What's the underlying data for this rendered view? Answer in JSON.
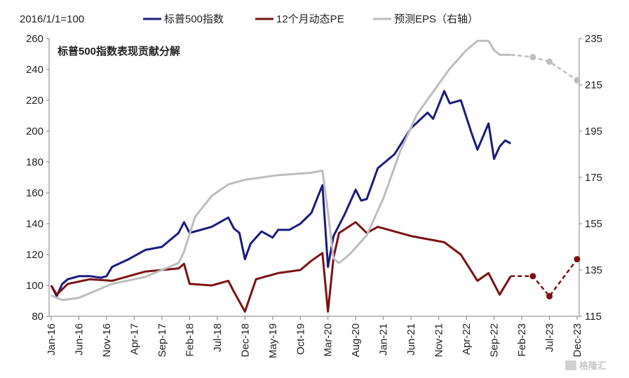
{
  "chart_data": {
    "type": "line",
    "title": "标普500指数表现贡献分解",
    "note": "2016/1/1=100",
    "x_ticks": [
      "Jan-16",
      "Jun-16",
      "Nov-16",
      "Apr-17",
      "Sep-17",
      "Feb-18",
      "Jul-18",
      "Dec-18",
      "May-19",
      "Oct-19",
      "Mar-20",
      "Aug-20",
      "Jan-21",
      "Jun-21",
      "Nov-21",
      "Apr-22",
      "Sep-22",
      "Feb-23",
      "Jul-23",
      "Dec-23"
    ],
    "y_left": {
      "ylim": [
        80,
        260
      ],
      "ticks": [
        80,
        100,
        120,
        140,
        160,
        180,
        200,
        220,
        240,
        260
      ]
    },
    "y_right": {
      "ylim": [
        115,
        235
      ],
      "ticks": [
        115,
        135,
        155,
        175,
        195,
        215,
        235
      ]
    },
    "grid": false,
    "legend_position": "top",
    "series": [
      {
        "name": "标普500指数",
        "axis": "left",
        "color": "#1b1b7e",
        "x": [
          "2016-01",
          "2016-02",
          "2016-03",
          "2016-04",
          "2016-06",
          "2016-08",
          "2016-10",
          "2016-11",
          "2016-12",
          "2017-03",
          "2017-06",
          "2017-09",
          "2017-12",
          "2018-01",
          "2018-02",
          "2018-03",
          "2018-06",
          "2018-09",
          "2018-10",
          "2018-11",
          "2018-12",
          "2019-01",
          "2019-03",
          "2019-05",
          "2019-06",
          "2019-08",
          "2019-10",
          "2019-12",
          "2020-02",
          "2020-03",
          "2020-04",
          "2020-06",
          "2020-08",
          "2020-09",
          "2020-10",
          "2020-12",
          "2021-03",
          "2021-06",
          "2021-09",
          "2021-10",
          "2021-12",
          "2022-01",
          "2022-03",
          "2022-05",
          "2022-06",
          "2022-08",
          "2022-09",
          "2022-10",
          "2022-11",
          "2022-12"
        ],
        "y": [
          100,
          93,
          101,
          104,
          106,
          106,
          105,
          106,
          112,
          117,
          123,
          125,
          134,
          141,
          134,
          135,
          138,
          144,
          137,
          134,
          117,
          127,
          135,
          131,
          136,
          136,
          140,
          147,
          165,
          112,
          132,
          146,
          162,
          155,
          156,
          176,
          185,
          202,
          212,
          208,
          226,
          218,
          220,
          198,
          188,
          205,
          182,
          190,
          194,
          192
        ]
      },
      {
        "name": "12个月动态PE",
        "axis": "left",
        "color": "#7b1212",
        "x": [
          "2016-01",
          "2016-02",
          "2016-04",
          "2016-08",
          "2016-12",
          "2017-06",
          "2017-12",
          "2018-01",
          "2018-02",
          "2018-06",
          "2018-09",
          "2018-10",
          "2018-12",
          "2019-02",
          "2019-06",
          "2019-10",
          "2019-12",
          "2020-02",
          "2020-03",
          "2020-04",
          "2020-05",
          "2020-08",
          "2020-10",
          "2020-12",
          "2021-06",
          "2021-12",
          "2022-03",
          "2022-06",
          "2022-08",
          "2022-10",
          "2022-12",
          "2023-04",
          "2023-07",
          "2023-12"
        ],
        "y": [
          100,
          94,
          101,
          104,
          103,
          109,
          111,
          114,
          101,
          100,
          103,
          96,
          83,
          104,
          108,
          110,
          116,
          121,
          83,
          118,
          134,
          141,
          134,
          138,
          132,
          128,
          120,
          103,
          108,
          94,
          106,
          106,
          93,
          117
        ]
      },
      {
        "name": "预测EPS（右轴）",
        "axis": "right",
        "color": "#bdbdbd",
        "x": [
          "2016-01",
          "2016-03",
          "2016-06",
          "2016-12",
          "2017-06",
          "2017-12",
          "2018-01",
          "2018-03",
          "2018-06",
          "2018-09",
          "2018-12",
          "2019-06",
          "2019-12",
          "2020-02",
          "2020-03",
          "2020-04",
          "2020-05",
          "2020-07",
          "2020-10",
          "2021-01",
          "2021-04",
          "2021-07",
          "2021-10",
          "2022-01",
          "2022-04",
          "2022-06",
          "2022-08",
          "2022-09",
          "2022-10",
          "2022-12",
          "2023-04",
          "2023-07",
          "2023-12"
        ],
        "y": [
          124,
          122,
          123,
          129,
          132,
          138,
          143,
          158,
          167,
          172,
          174,
          176,
          177,
          178,
          160,
          140,
          138,
          142,
          150,
          166,
          186,
          202,
          212,
          222,
          230,
          234,
          234,
          230,
          228,
          228,
          227,
          225,
          217
        ]
      }
    ]
  },
  "watermark": "格隆汇"
}
